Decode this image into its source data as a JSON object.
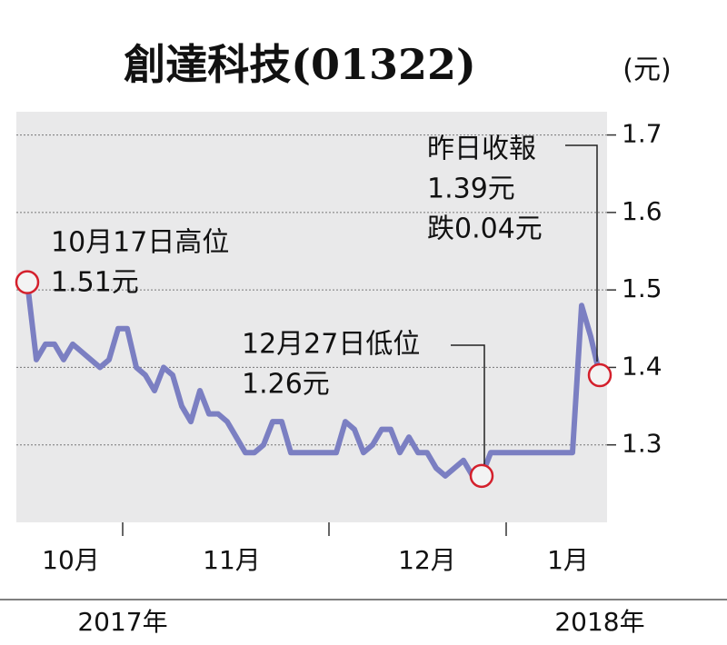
{
  "chart_data": {
    "type": "line",
    "title": "創達科技(01322)",
    "unit": "(元)",
    "values": [
      1.51,
      1.41,
      1.43,
      1.43,
      1.41,
      1.43,
      1.42,
      1.41,
      1.4,
      1.41,
      1.45,
      1.45,
      1.4,
      1.39,
      1.37,
      1.4,
      1.39,
      1.35,
      1.33,
      1.37,
      1.34,
      1.34,
      1.33,
      1.31,
      1.29,
      1.29,
      1.3,
      1.33,
      1.33,
      1.29,
      1.29,
      1.29,
      1.29,
      1.29,
      1.29,
      1.33,
      1.32,
      1.29,
      1.3,
      1.32,
      1.32,
      1.29,
      1.31,
      1.29,
      1.29,
      1.27,
      1.26,
      1.27,
      1.28,
      1.26,
      1.26,
      1.29,
      1.29,
      1.29,
      1.29,
      1.29,
      1.29,
      1.29,
      1.29,
      1.29,
      1.29,
      1.48,
      1.44,
      1.39
    ],
    "color": "#7b7fc2",
    "marker_color": "#d4202c",
    "ylim": [
      1.2,
      1.73
    ],
    "yticks": [
      1.3,
      1.4,
      1.5,
      1.6,
      1.7
    ],
    "grid": true,
    "months": [
      "10月",
      "11月",
      "12月",
      "1月"
    ],
    "years": [
      "2017年",
      "2018年"
    ],
    "annotations": [
      {
        "lines": [
          "10月17日高位",
          "1.51元"
        ]
      },
      {
        "lines": [
          "12月27日低位",
          "1.26元"
        ]
      },
      {
        "lines": [
          "昨日收報",
          "1.39元",
          "跌0.04元"
        ]
      }
    ]
  }
}
